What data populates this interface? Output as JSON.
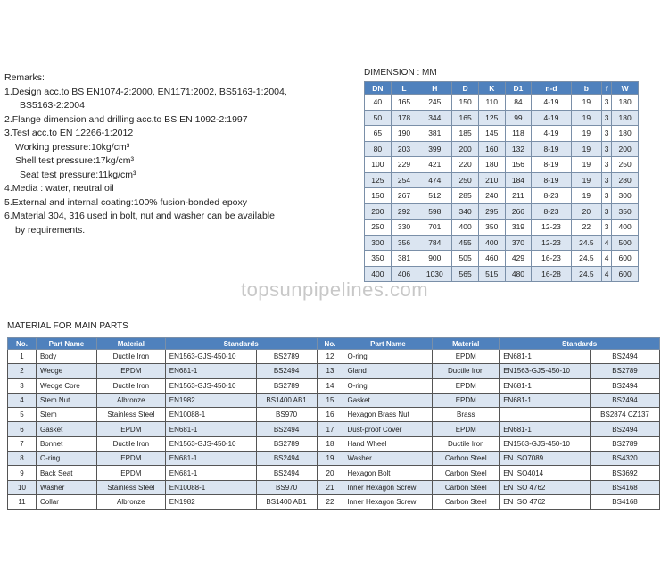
{
  "remarks": {
    "title": "Remarks:",
    "lines": [
      {
        "text": "1.Design acc.to BS EN1074-2:2000, EN1171:2002, BS5163-1:2004,",
        "indent": 0
      },
      {
        "text": "BS5163-2:2004",
        "indent": 2
      },
      {
        "text": "2.Flange dimension and drilling acc.to BS EN 1092-2:1997",
        "indent": 0
      },
      {
        "text": "3.Test acc.to EN 12266-1:2012",
        "indent": 0
      },
      {
        "text": "Working  pressure:10kg/cm³",
        "indent": 1
      },
      {
        "text": "Shell test pressure:17kg/cm³",
        "indent": 1
      },
      {
        "text": "Seat test pressure:11kg/cm³",
        "indent": 2
      },
      {
        "text": "4.Media : water, neutral oil",
        "indent": 0
      },
      {
        "text": "5.External and internal coating:100% fusion-bonded epoxy",
        "indent": 0
      },
      {
        "text": "6.Material 304, 316 used in bolt, nut and washer can be available",
        "indent": 0
      },
      {
        "text": "by requirements.",
        "indent": 1
      }
    ]
  },
  "dimension": {
    "title": "DIMENSION : MM",
    "headers": [
      "DN",
      "L",
      "H",
      "D",
      "K",
      "D1",
      "n-d",
      "b",
      "f",
      "W"
    ],
    "rows": [
      [
        "40",
        "165",
        "245",
        "150",
        "110",
        "84",
        "4-19",
        "19",
        "3",
        "180"
      ],
      [
        "50",
        "178",
        "344",
        "165",
        "125",
        "99",
        "4-19",
        "19",
        "3",
        "180"
      ],
      [
        "65",
        "190",
        "381",
        "185",
        "145",
        "118",
        "4-19",
        "19",
        "3",
        "180"
      ],
      [
        "80",
        "203",
        "399",
        "200",
        "160",
        "132",
        "8-19",
        "19",
        "3",
        "200"
      ],
      [
        "100",
        "229",
        "421",
        "220",
        "180",
        "156",
        "8-19",
        "19",
        "3",
        "250"
      ],
      [
        "125",
        "254",
        "474",
        "250",
        "210",
        "184",
        "8-19",
        "19",
        "3",
        "280"
      ],
      [
        "150",
        "267",
        "512",
        "285",
        "240",
        "211",
        "8-23",
        "19",
        "3",
        "300"
      ],
      [
        "200",
        "292",
        "598",
        "340",
        "295",
        "266",
        "8-23",
        "20",
        "3",
        "350"
      ],
      [
        "250",
        "330",
        "701",
        "400",
        "350",
        "319",
        "12-23",
        "22",
        "3",
        "400"
      ],
      [
        "300",
        "356",
        "784",
        "455",
        "400",
        "370",
        "12-23",
        "24.5",
        "4",
        "500"
      ],
      [
        "350",
        "381",
        "900",
        "505",
        "460",
        "429",
        "16-23",
        "24.5",
        "4",
        "600"
      ],
      [
        "400",
        "406",
        "1030",
        "565",
        "515",
        "480",
        "16-28",
        "24.5",
        "4",
        "600"
      ]
    ]
  },
  "watermark": "topsunpipelines.com",
  "materials": {
    "title": "MATERIAL FOR MAIN PARTS",
    "headers": {
      "no": "No.",
      "part": "Part Name",
      "material": "Material",
      "standards": "Standards"
    },
    "left": [
      [
        "1",
        "Body",
        "Ductile Iron",
        "EN1563-GJS-450-10",
        "BS2789"
      ],
      [
        "2",
        "Wedge",
        "EPDM",
        "EN681-1",
        "BS2494"
      ],
      [
        "3",
        "Wedge Core",
        "Ductile Iron",
        "EN1563-GJS-450-10",
        "BS2789"
      ],
      [
        "4",
        "Stem Nut",
        "Albronze",
        "EN1982",
        "BS1400 AB1"
      ],
      [
        "5",
        "Stem",
        "Stainless Steel",
        "EN10088-1",
        "BS970"
      ],
      [
        "6",
        "Gasket",
        "EPDM",
        "EN681-1",
        "BS2494"
      ],
      [
        "7",
        "Bonnet",
        "Ductile Iron",
        "EN1563-GJS-450-10",
        "BS2789"
      ],
      [
        "8",
        "O-ring",
        "EPDM",
        "EN681-1",
        "BS2494"
      ],
      [
        "9",
        "Back Seat",
        "EPDM",
        "EN681-1",
        "BS2494"
      ],
      [
        "10",
        "Washer",
        "Stainless Steel",
        "EN10088-1",
        "BS970"
      ],
      [
        "11",
        "Collar",
        "Albronze",
        "EN1982",
        "BS1400 AB1"
      ]
    ],
    "right": [
      [
        "12",
        "O-ring",
        "EPDM",
        "EN681-1",
        "BS2494"
      ],
      [
        "13",
        "Gland",
        "Ductile Iron",
        "EN1563-GJS-450-10",
        "BS2789"
      ],
      [
        "14",
        "O-ring",
        "EPDM",
        "EN681-1",
        "BS2494"
      ],
      [
        "15",
        "Gasket",
        "EPDM",
        "EN681-1",
        "BS2494"
      ],
      [
        "16",
        "Hexagon Brass Nut",
        "Brass",
        "",
        "BS2874 CZ137"
      ],
      [
        "17",
        "Dust-proof Cover",
        "EPDM",
        "EN681-1",
        "BS2494"
      ],
      [
        "18",
        "Hand Wheel",
        "Ductile Iron",
        "EN1563-GJS-450-10",
        "BS2789"
      ],
      [
        "19",
        "Washer",
        "Carbon Steel",
        "EN ISO7089",
        "BS4320"
      ],
      [
        "20",
        "Hexagon Bolt",
        "Carbon Steel",
        "EN ISO4014",
        "BS3692"
      ],
      [
        "21",
        "Inner Hexagon Screw",
        "Carbon Steel",
        "EN ISO 4762",
        "BS4168"
      ],
      [
        "22",
        "Inner Hexagon Screw",
        "Carbon Steel",
        "EN ISO 4762",
        "BS4168"
      ]
    ]
  },
  "colors": {
    "header": "#4f81bd",
    "alt_row": "#dbe5f1"
  }
}
